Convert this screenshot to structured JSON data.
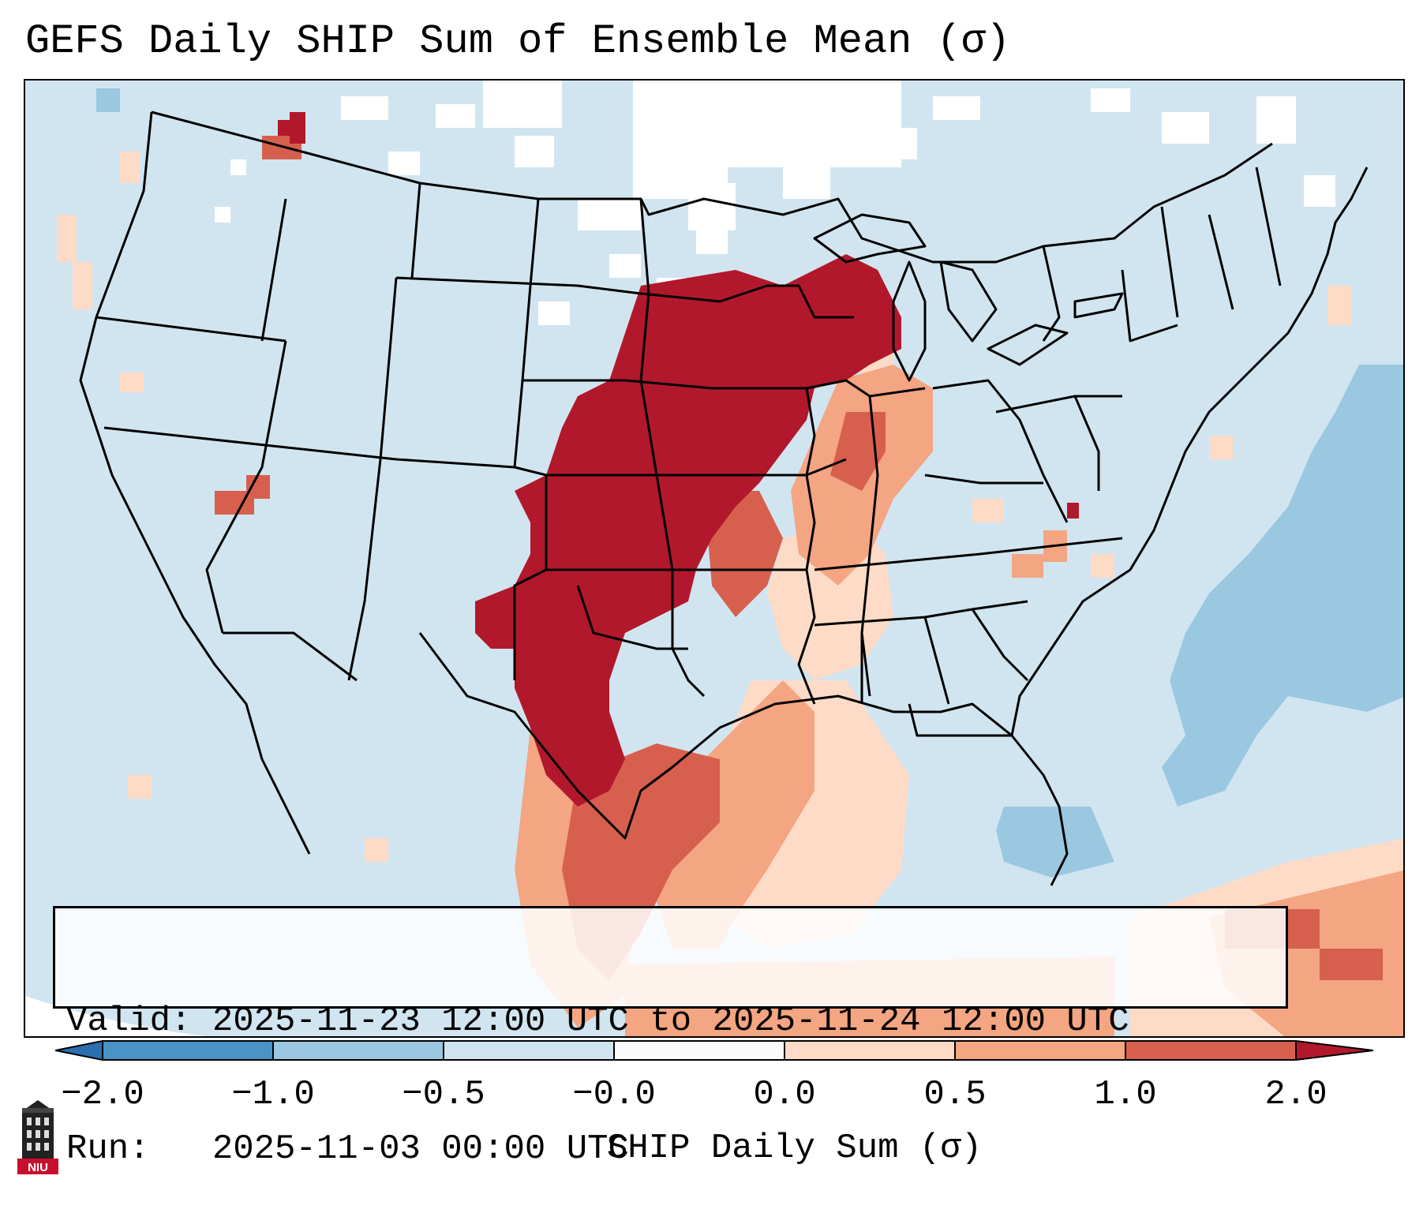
{
  "title": "GEFS Daily SHIP Sum of Ensemble Mean (σ)",
  "info": {
    "valid_line": "Valid: 2025-11-23 12:00 UTC to 2025-11-24 12:00 UTC",
    "run_line": "Run:   2025-11-03 00:00 UTC"
  },
  "colorbar": {
    "label": "SHIP Daily Sum (σ)",
    "ticks": [
      "−2.0",
      "−1.0",
      "−0.5",
      "−0.0",
      "0.0",
      "0.5",
      "1.0",
      "2.0"
    ],
    "colors": [
      "#2b6fb0",
      "#4a93c6",
      "#9ac8e0",
      "#d1e5f0",
      "#fbfbfb",
      "#fddbc7",
      "#f4a582",
      "#d6604d",
      "#b2182b"
    ]
  },
  "logo": {
    "text": "NIU"
  },
  "map": {
    "background_color": "#d1e5f0",
    "strong_positive_color": "#b2182b",
    "moderate_positive_color": "#d6604d",
    "weak_positive_color": "#f4a582",
    "slight_positive_color": "#fddbc7",
    "weak_negative_color": "#9ac8e0",
    "neutral_color": "#ffffff"
  }
}
